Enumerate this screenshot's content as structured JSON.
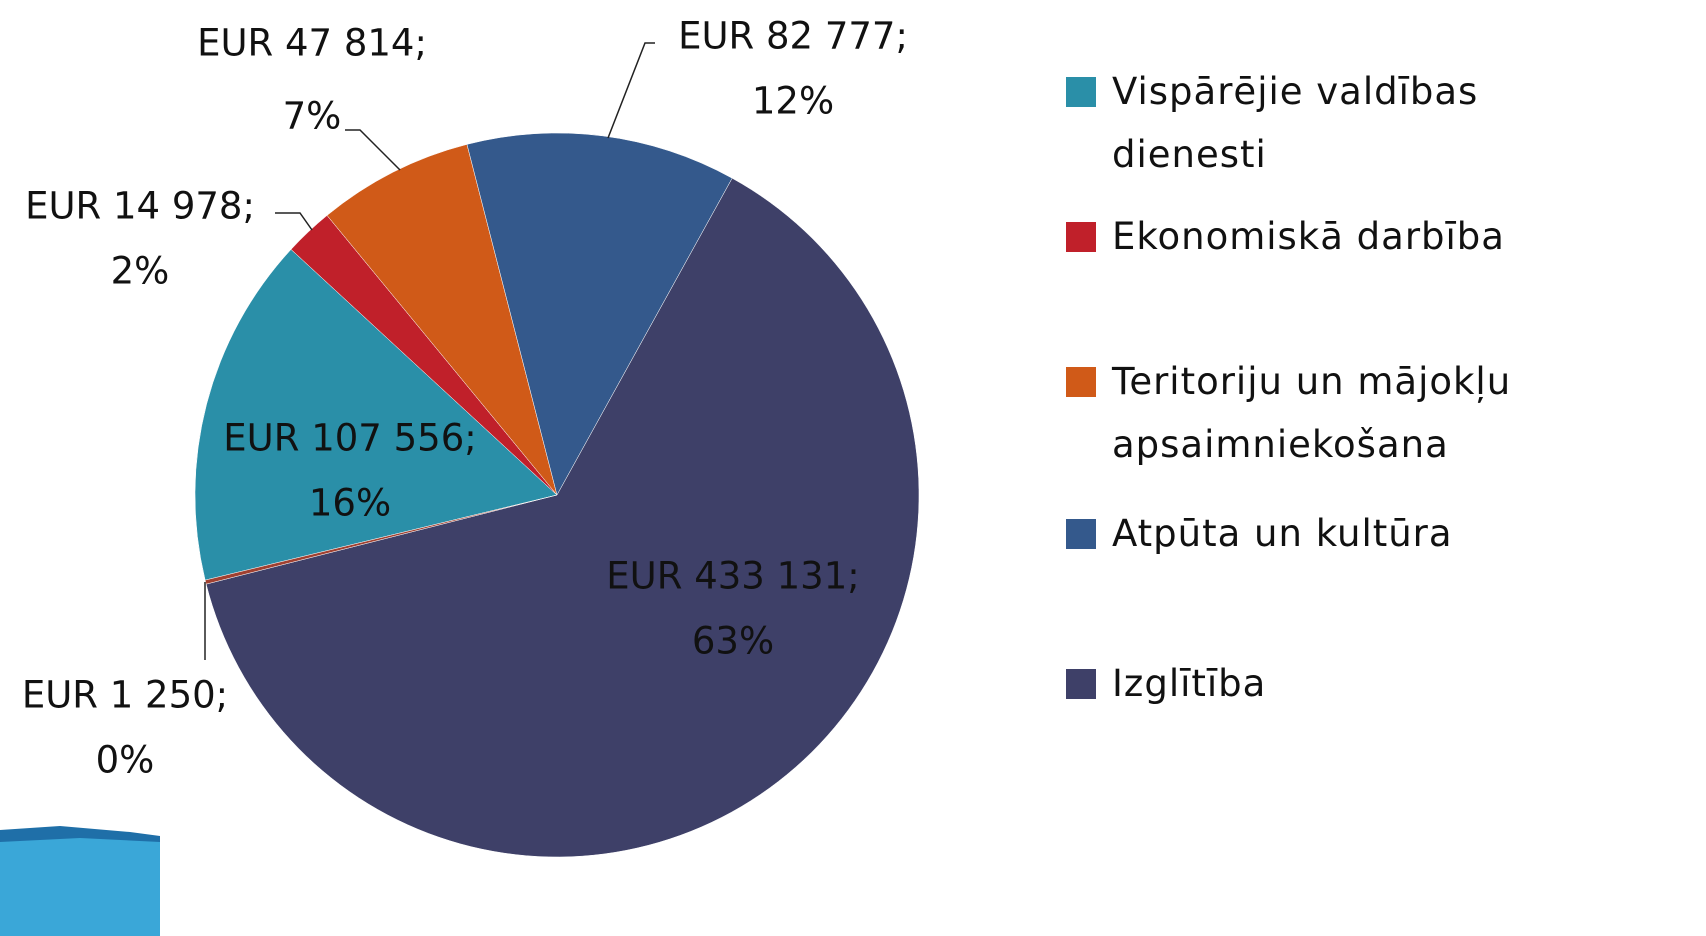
{
  "chart_data": {
    "type": "pie",
    "categories": [
      "Vispārējie valdības dienesti",
      "Ekonomiskā darbība",
      "Teritoriju un mājokļu apsaimniekošana",
      "Atpūta un kultūra",
      "Izglītība",
      null
    ],
    "values": [
      107556,
      14978,
      47814,
      82777,
      433131,
      1250
    ],
    "value_labels": [
      "EUR 107 556;",
      "EUR 14 978;",
      "EUR 47 814;",
      "EUR 82 777;",
      "EUR 433 131;",
      "EUR 1 250;"
    ],
    "percents": [
      16,
      2,
      7,
      12,
      63,
      0
    ],
    "percent_labels": [
      "16%",
      "2%",
      "7%",
      "12%",
      "63%",
      "0%"
    ],
    "colors": [
      "#2a8fa8",
      "#c0202a",
      "#d05a18",
      "#34598c",
      "#3e4068",
      "#a04030"
    ],
    "legend": "right"
  }
}
